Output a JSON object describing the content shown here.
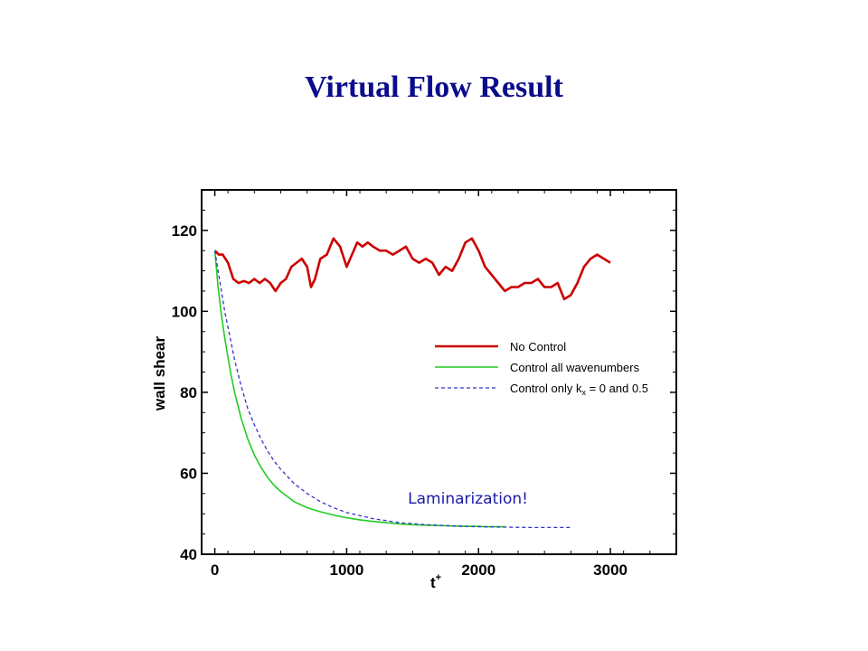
{
  "slide": {
    "title": "Virtual Flow Result"
  },
  "chart_data": {
    "type": "line",
    "title": "",
    "xlabel": "t",
    "xlabel_superscript": "+",
    "ylabel": "wall shear",
    "xlim": [
      -100,
      3500
    ],
    "ylim": [
      40,
      130
    ],
    "x_ticks": [
      0,
      1000,
      2000,
      3000
    ],
    "x_tick_labels": [
      "0",
      "1000",
      "2000",
      "3000"
    ],
    "y_ticks": [
      40,
      60,
      80,
      100,
      120
    ],
    "y_tick_labels": [
      "40",
      "60",
      "80",
      "100",
      "120"
    ],
    "grid": false,
    "legend_position": "center-right",
    "series": [
      {
        "name": "No Control",
        "color": "#cc0000",
        "style": "solid",
        "x": [
          0,
          30,
          60,
          100,
          140,
          180,
          220,
          260,
          300,
          340,
          380,
          420,
          460,
          500,
          540,
          580,
          620,
          660,
          700,
          730,
          760,
          800,
          850,
          900,
          950,
          1000,
          1040,
          1080,
          1120,
          1160,
          1200,
          1250,
          1300,
          1350,
          1400,
          1450,
          1500,
          1550,
          1600,
          1650,
          1700,
          1750,
          1800,
          1850,
          1900,
          1950,
          2000,
          2050,
          2100,
          2150,
          2200,
          2250,
          2300,
          2350,
          2400,
          2450,
          2500,
          2550,
          2600,
          2650,
          2700,
          2750,
          2800,
          2850,
          2900,
          2950,
          3000
        ],
        "values": [
          115,
          114,
          114,
          112,
          108,
          107,
          107.5,
          107,
          108,
          107,
          108,
          107,
          105,
          107,
          108,
          111,
          112,
          113,
          111,
          106,
          108,
          113,
          114,
          118,
          116,
          111,
          114,
          117,
          116,
          117,
          116,
          115,
          115,
          114,
          115,
          116,
          113,
          112,
          113,
          112,
          109,
          111,
          110,
          113,
          117,
          118,
          115,
          111,
          109,
          107,
          105,
          106,
          106,
          107,
          107,
          108,
          106,
          106,
          107,
          103,
          104,
          107,
          111,
          113,
          114,
          113,
          112
        ]
      },
      {
        "name": "Control all wavenumbers",
        "color": "#22cc22",
        "style": "solid",
        "x": [
          0,
          25,
          50,
          75,
          100,
          125,
          150,
          200,
          250,
          300,
          350,
          400,
          450,
          500,
          600,
          700,
          800,
          900,
          1000,
          1100,
          1200,
          1300,
          1400,
          1500,
          1600,
          1700,
          1800,
          1900,
          2000,
          2050,
          2100,
          2150,
          2200
        ],
        "values": [
          115,
          106,
          99,
          93.5,
          88.5,
          84,
          80,
          73.5,
          68.5,
          64.5,
          61.5,
          59,
          57,
          55.5,
          53,
          51.5,
          50.5,
          49.7,
          49,
          48.5,
          48.1,
          47.8,
          47.5,
          47.3,
          47.2,
          47.1,
          47,
          46.9,
          46.9,
          46.8,
          46.8,
          46.8,
          46.8
        ]
      },
      {
        "name": "Control only kx = 0 and 0.5",
        "color": "#3333cc",
        "style": "dashed",
        "x": [
          0,
          25,
          50,
          75,
          100,
          150,
          200,
          250,
          300,
          350,
          400,
          450,
          500,
          600,
          700,
          800,
          900,
          1000,
          1200,
          1400,
          1600,
          1800,
          2000,
          2200,
          2400,
          2600,
          2700
        ],
        "values": [
          115,
          110,
          105,
          100,
          96,
          88,
          81.5,
          76,
          72,
          68.5,
          65.5,
          63,
          61,
          57.5,
          55,
          53,
          51.5,
          50.3,
          48.8,
          47.8,
          47.3,
          47,
          46.8,
          46.7,
          46.6,
          46.6,
          46.6
        ]
      }
    ],
    "legend": {
      "entries": [
        {
          "label": "No Control"
        },
        {
          "label": "Control all wavenumbers"
        },
        {
          "label_prefix": "Control only k",
          "label_sub": "x",
          "label_suffix": " = 0 and 0.5"
        }
      ]
    },
    "annotations": [
      {
        "text": "Laminarization!",
        "x": 1920,
        "y": 52.5
      }
    ]
  }
}
